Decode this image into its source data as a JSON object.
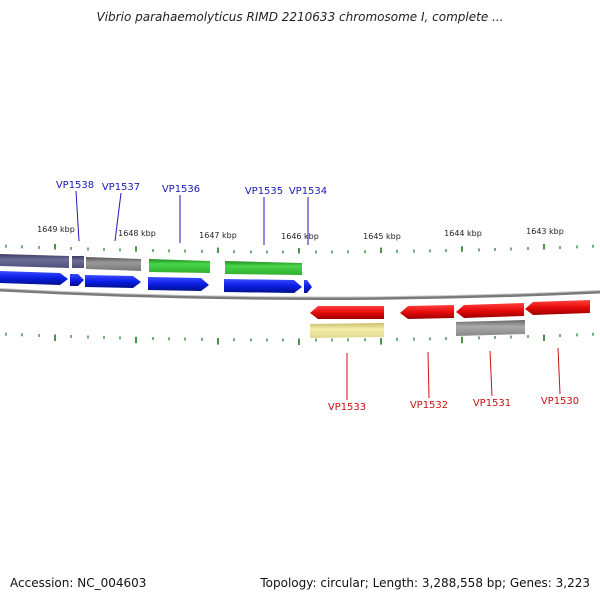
{
  "title": "Vibrio parahaemolyticus RIMD 2210633 chromosome I, complete ...",
  "footer": {
    "accession": "Accession: NC_004603",
    "topology": "Topology: circular; Length: 3,288,558 bp; Genes: 3,223"
  },
  "colors": {
    "forward_gene_label": "#1a1ab8",
    "reverse_gene_label": "#cc1111",
    "tick": "#1a7a1a",
    "backbone": "#888888",
    "blue": "#0a1ee6",
    "red": "#e60a0a",
    "green": "#33cc33",
    "gray": "#777777",
    "slate": "#55557a",
    "khaki": "#ece39a"
  },
  "scale_labels": [
    "1649 kbp",
    "1648 kbp",
    "1647 kbp",
    "1646 kbp",
    "1645 kbp",
    "1644 kbp",
    "1643 kbp"
  ],
  "forward_genes": [
    "VP1538",
    "VP1537",
    "VP1536",
    "VP1535",
    "VP1534"
  ],
  "reverse_genes": [
    "VP1533",
    "VP1532",
    "VP1531",
    "VP1530"
  ]
}
